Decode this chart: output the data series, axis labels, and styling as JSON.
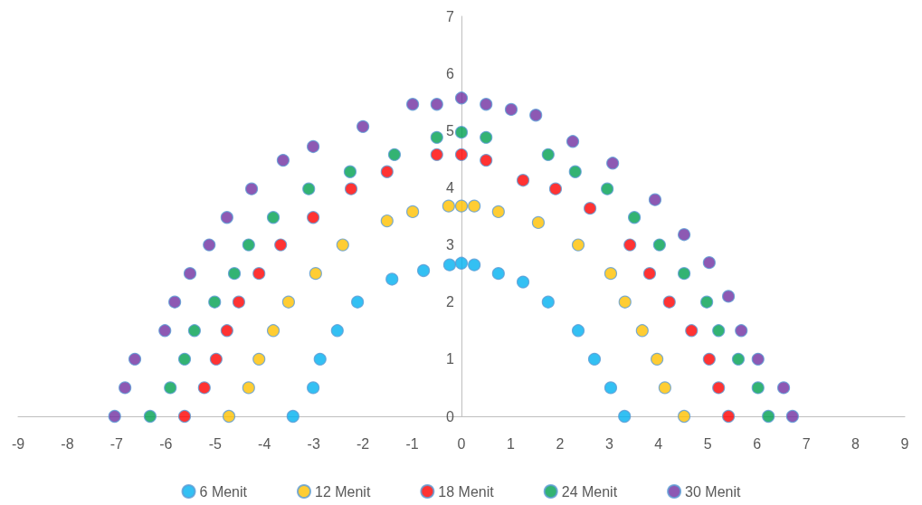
{
  "chart_data": {
    "type": "scatter",
    "marker": "circle",
    "legend": "bottom",
    "grid": false,
    "xlim": [
      -9,
      9
    ],
    "xticks": [
      -9,
      -8,
      -7,
      -6,
      -5,
      -4,
      -3,
      -2,
      -1,
      0,
      1,
      2,
      3,
      4,
      5,
      6,
      7,
      8,
      9
    ],
    "ylim": [
      0,
      7
    ],
    "yticks": [
      0,
      1,
      2,
      3,
      4,
      5,
      6,
      7
    ],
    "series": [
      {
        "name": "6 Menit",
        "color": "#00b0f0",
        "x": [
          -3.42,
          -3.01,
          -2.87,
          -2.52,
          -2.11,
          -1.41,
          -0.77,
          -0.24,
          0,
          0.26,
          0.75,
          1.25,
          1.76,
          2.37,
          2.7,
          3.03,
          3.31
        ],
        "values": [
          0,
          0.5,
          1,
          1.5,
          2,
          2.4,
          2.55,
          2.65,
          2.68,
          2.65,
          2.5,
          2.35,
          2,
          1.5,
          1,
          0.5,
          0
        ]
      },
      {
        "name": "12 Menit",
        "color": "#ffc000",
        "x": [
          -4.72,
          -4.32,
          -4.11,
          -3.82,
          -3.51,
          -2.96,
          -2.41,
          -1.51,
          -0.99,
          -0.26,
          0,
          0.26,
          0.75,
          1.56,
          2.37,
          3.03,
          3.32,
          3.67,
          3.97,
          4.13,
          4.52
        ],
        "values": [
          0,
          0.5,
          1,
          1.5,
          2,
          2.5,
          3,
          3.42,
          3.58,
          3.68,
          3.68,
          3.68,
          3.58,
          3.39,
          3,
          2.5,
          2,
          1.5,
          1,
          0.5,
          0
        ]
      },
      {
        "name": "18 Menit",
        "color": "#ff0000",
        "x": [
          -5.62,
          -5.22,
          -4.98,
          -4.76,
          -4.52,
          -4.11,
          -3.67,
          -3.01,
          -2.24,
          -1.51,
          -0.5,
          0,
          0.5,
          1.25,
          1.91,
          2.61,
          3.42,
          3.82,
          4.22,
          4.67,
          5.03,
          5.22,
          5.42
        ],
        "values": [
          0,
          0.5,
          1,
          1.5,
          2,
          2.5,
          3,
          3.48,
          3.98,
          4.28,
          4.58,
          4.58,
          4.48,
          4.13,
          3.98,
          3.64,
          3,
          2.5,
          2,
          1.5,
          1,
          0.5,
          0
        ]
      },
      {
        "name": "24 Menit",
        "color": "#00a050",
        "x": [
          -6.32,
          -5.91,
          -5.62,
          -5.42,
          -5.01,
          -4.61,
          -4.32,
          -3.82,
          -3.1,
          -2.26,
          -1.36,
          -0.5,
          0,
          0.5,
          1.76,
          2.31,
          2.96,
          3.51,
          4.02,
          4.52,
          4.98,
          5.22,
          5.62,
          6.02,
          6.23
        ],
        "values": [
          0,
          0.5,
          1,
          1.5,
          2,
          2.5,
          3,
          3.48,
          3.98,
          4.28,
          4.58,
          4.88,
          4.97,
          4.88,
          4.58,
          4.28,
          3.98,
          3.48,
          3,
          2.5,
          2,
          1.5,
          1,
          0.5,
          0
        ]
      },
      {
        "name": "30 Menit",
        "color": "#7030a0",
        "x": [
          -7.04,
          -6.83,
          -6.63,
          -6.02,
          -5.82,
          -5.51,
          -5.12,
          -4.76,
          -4.26,
          -3.62,
          -3.01,
          -2,
          -0.99,
          -0.5,
          0,
          0.5,
          1.01,
          1.51,
          2.26,
          3.07,
          3.93,
          4.52,
          5.03,
          5.42,
          5.68,
          6.02,
          6.54,
          6.72
        ],
        "values": [
          0,
          0.5,
          1,
          1.5,
          2,
          2.5,
          3,
          3.48,
          3.98,
          4.48,
          4.72,
          5.07,
          5.46,
          5.46,
          5.57,
          5.46,
          5.37,
          5.27,
          4.81,
          4.43,
          3.79,
          3.18,
          2.69,
          2.1,
          1.5,
          1,
          0.5,
          0
        ]
      }
    ]
  }
}
